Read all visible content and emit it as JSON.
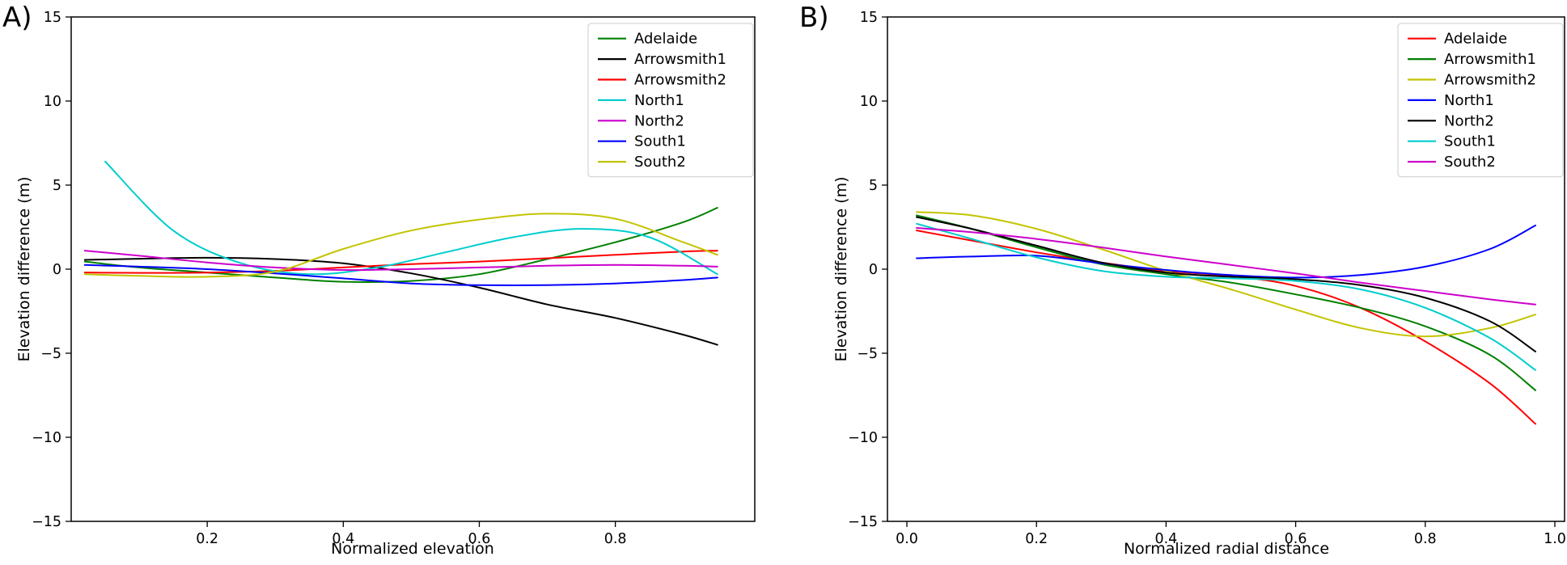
{
  "chart_data": [
    {
      "type": "line",
      "panel_label": "A)",
      "xlabel": "Normalized elevation",
      "ylabel": "Elevation difference (m)",
      "xlim": [
        0.0,
        1.005
      ],
      "ylim": [
        -15,
        15
      ],
      "xticks": [
        0.2,
        0.4,
        0.6,
        0.8
      ],
      "xtick_labels": [
        "0.2",
        "0.4",
        "0.6",
        "0.8"
      ],
      "yticks": [
        15,
        10,
        5,
        0,
        -5,
        -10,
        -15
      ],
      "ytick_labels": [
        "15",
        "10",
        "5",
        "0",
        "−5",
        "−10",
        "−15"
      ],
      "grid": false,
      "legend_position": "upper right",
      "series": [
        {
          "name": "Adelaide",
          "color": "#008000",
          "x": [
            0.02,
            0.1,
            0.2,
            0.3,
            0.4,
            0.5,
            0.6,
            0.7,
            0.8,
            0.9,
            0.95
          ],
          "y": [
            0.45,
            0.1,
            -0.2,
            -0.5,
            -0.75,
            -0.7,
            -0.3,
            0.6,
            1.6,
            2.8,
            3.65
          ]
        },
        {
          "name": "Arrowsmith1",
          "color": "#000000",
          "x": [
            0.02,
            0.1,
            0.2,
            0.3,
            0.4,
            0.5,
            0.6,
            0.7,
            0.8,
            0.9,
            0.95
          ],
          "y": [
            0.55,
            0.62,
            0.68,
            0.6,
            0.35,
            -0.25,
            -1.1,
            -2.1,
            -2.9,
            -3.9,
            -4.5
          ]
        },
        {
          "name": "Arrowsmith2",
          "color": "#ff0000",
          "x": [
            0.02,
            0.1,
            0.2,
            0.3,
            0.4,
            0.5,
            0.6,
            0.7,
            0.8,
            0.9,
            0.95
          ],
          "y": [
            -0.2,
            -0.22,
            -0.2,
            -0.1,
            0.1,
            0.3,
            0.45,
            0.65,
            0.85,
            1.05,
            1.1
          ]
        },
        {
          "name": "North1",
          "color": "#00cdcd",
          "x": [
            0.05,
            0.15,
            0.25,
            0.35,
            0.45,
            0.55,
            0.65,
            0.75,
            0.85,
            0.95
          ],
          "y": [
            6.4,
            2.3,
            0.35,
            -0.3,
            0.1,
            1.0,
            1.9,
            2.4,
            1.9,
            -0.3
          ]
        },
        {
          "name": "North2",
          "color": "#cc00cc",
          "x": [
            0.02,
            0.1,
            0.2,
            0.3,
            0.4,
            0.5,
            0.6,
            0.7,
            0.8,
            0.9,
            0.95
          ],
          "y": [
            1.1,
            0.8,
            0.4,
            0.1,
            -0.05,
            0.0,
            0.1,
            0.2,
            0.25,
            0.2,
            0.15
          ]
        },
        {
          "name": "South1",
          "color": "#0000ff",
          "x": [
            0.02,
            0.1,
            0.2,
            0.3,
            0.4,
            0.5,
            0.6,
            0.7,
            0.8,
            0.9,
            0.95
          ],
          "y": [
            0.25,
            0.15,
            0.0,
            -0.25,
            -0.55,
            -0.85,
            -0.95,
            -0.95,
            -0.85,
            -0.65,
            -0.5
          ]
        },
        {
          "name": "South2",
          "color": "#c3c300",
          "x": [
            0.02,
            0.1,
            0.2,
            0.3,
            0.4,
            0.5,
            0.6,
            0.7,
            0.8,
            0.9,
            0.95
          ],
          "y": [
            -0.3,
            -0.4,
            -0.45,
            -0.15,
            1.2,
            2.3,
            2.95,
            3.3,
            3.0,
            1.6,
            0.85
          ]
        }
      ]
    },
    {
      "type": "line",
      "panel_label": "B)",
      "xlabel": "Normalized radial distance",
      "ylabel": "Elevation difference (m)",
      "xlim": [
        -0.03,
        1.015
      ],
      "ylim": [
        -15,
        15
      ],
      "xticks": [
        0.0,
        0.2,
        0.4,
        0.6,
        0.8,
        1.0
      ],
      "xtick_labels": [
        "0.0",
        "0.2",
        "0.4",
        "0.6",
        "0.8",
        "1.0"
      ],
      "yticks": [
        15,
        10,
        5,
        0,
        -5,
        -10,
        -15
      ],
      "ytick_labels": [
        "15",
        "10",
        "5",
        "0",
        "−5",
        "−10",
        "−15"
      ],
      "grid": false,
      "legend_position": "upper right",
      "series": [
        {
          "name": "Adelaide",
          "color": "#ff0000",
          "x": [
            0.015,
            0.1,
            0.2,
            0.3,
            0.4,
            0.5,
            0.6,
            0.7,
            0.8,
            0.9,
            0.97
          ],
          "y": [
            2.3,
            1.7,
            1.0,
            0.4,
            -0.1,
            -0.4,
            -1.0,
            -2.3,
            -4.3,
            -6.8,
            -9.2
          ]
        },
        {
          "name": "Arrowsmith1",
          "color": "#008000",
          "x": [
            0.015,
            0.1,
            0.2,
            0.3,
            0.4,
            0.5,
            0.6,
            0.7,
            0.8,
            0.9,
            0.97
          ],
          "y": [
            3.2,
            2.4,
            1.3,
            0.3,
            -0.3,
            -0.8,
            -1.5,
            -2.3,
            -3.4,
            -5.1,
            -7.2
          ]
        },
        {
          "name": "Arrowsmith2",
          "color": "#c3c300",
          "x": [
            0.015,
            0.1,
            0.2,
            0.3,
            0.4,
            0.5,
            0.6,
            0.7,
            0.8,
            0.9,
            0.97
          ],
          "y": [
            3.4,
            3.2,
            2.4,
            1.2,
            -0.1,
            -1.2,
            -2.4,
            -3.5,
            -4.0,
            -3.5,
            -2.7
          ]
        },
        {
          "name": "North1",
          "color": "#0000ff",
          "x": [
            0.015,
            0.1,
            0.2,
            0.3,
            0.4,
            0.5,
            0.6,
            0.7,
            0.8,
            0.9,
            0.97
          ],
          "y": [
            0.65,
            0.75,
            0.8,
            0.35,
            -0.05,
            -0.35,
            -0.5,
            -0.35,
            0.15,
            1.2,
            2.6
          ]
        },
        {
          "name": "North2",
          "color": "#000000",
          "x": [
            0.015,
            0.1,
            0.2,
            0.3,
            0.4,
            0.5,
            0.6,
            0.7,
            0.8,
            0.9,
            0.97
          ],
          "y": [
            3.1,
            2.4,
            1.4,
            0.4,
            -0.2,
            -0.45,
            -0.6,
            -0.95,
            -1.7,
            -3.1,
            -4.9
          ]
        },
        {
          "name": "South1",
          "color": "#00cdcd",
          "x": [
            0.015,
            0.1,
            0.2,
            0.3,
            0.4,
            0.5,
            0.6,
            0.7,
            0.8,
            0.9,
            0.97
          ],
          "y": [
            2.7,
            1.8,
            0.7,
            -0.1,
            -0.45,
            -0.55,
            -0.7,
            -1.2,
            -2.3,
            -4.1,
            -6.0
          ]
        },
        {
          "name": "South2",
          "color": "#cc00cc",
          "x": [
            0.015,
            0.1,
            0.2,
            0.3,
            0.4,
            0.5,
            0.6,
            0.7,
            0.8,
            0.9,
            0.97
          ],
          "y": [
            2.45,
            2.2,
            1.8,
            1.3,
            0.75,
            0.25,
            -0.25,
            -0.8,
            -1.3,
            -1.8,
            -2.1
          ]
        }
      ]
    }
  ]
}
